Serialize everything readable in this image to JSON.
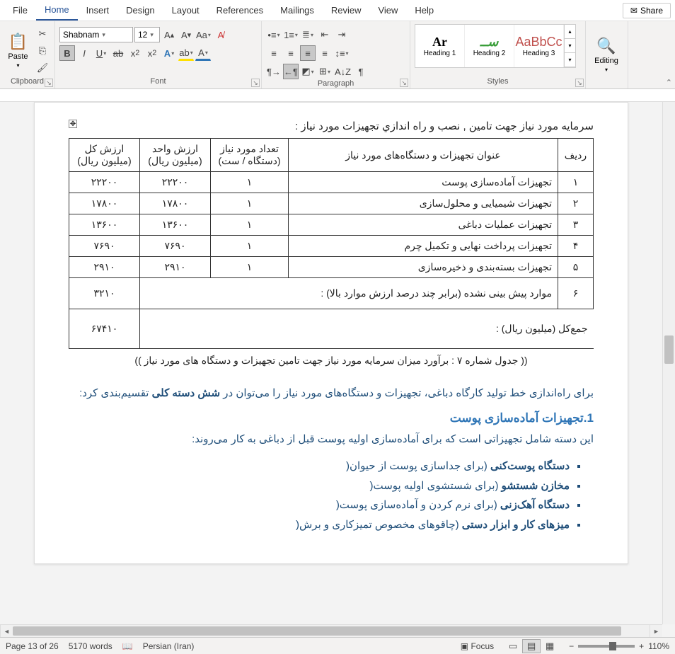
{
  "tabs": [
    "File",
    "Home",
    "Insert",
    "Design",
    "Layout",
    "References",
    "Mailings",
    "Review",
    "View",
    "Help"
  ],
  "active_tab": "Home",
  "share_label": "Share",
  "clipboard": {
    "paste_label": "Paste",
    "group_label": "Clipboard"
  },
  "font": {
    "name": "Shabnam",
    "size": "12",
    "group_label": "Font"
  },
  "paragraph": {
    "group_label": "Paragraph"
  },
  "styles": {
    "group_label": "Styles",
    "items": [
      {
        "preview": "Ar",
        "label": "Heading 1",
        "cls": "h1"
      },
      {
        "preview": "ســ",
        "label": "Heading 2",
        "cls": "h2"
      },
      {
        "preview": "AaBbCc",
        "label": "Heading 3",
        "cls": "h3"
      }
    ]
  },
  "editing": {
    "group_label": "Editing",
    "label": "Editing"
  },
  "doc": {
    "title": "سرمایه مورد نیاز جهت تامین , نصب و راه اندازي تجهیزات مورد نیاز :",
    "headers": [
      "ردیف",
      "عنوان تجهیزات و دستگاه‌های مورد نیاز",
      "تعداد مورد نیاز (دستگاه / ست)",
      "ارزش واحد (میلیون ریال)",
      "ارزش کل (میلیون ریال)"
    ],
    "rows": [
      [
        "۱",
        "تجهیزات آماده‌سازی پوست",
        "۱",
        "۲۲۲۰۰",
        "۲۲۲۰۰"
      ],
      [
        "۲",
        "تجهیزات شیمیایی و محلول‌سازی",
        "۱",
        "۱۷۸۰۰",
        "۱۷۸۰۰"
      ],
      [
        "۳",
        "تجهیزات عملیات دباغی",
        "۱",
        "۱۳۶۰۰",
        "۱۳۶۰۰"
      ],
      [
        "۴",
        "تجهیزات پرداخت نهایی و تکمیل چرم",
        "۱",
        "۷۶۹۰",
        "۷۶۹۰"
      ],
      [
        "۵",
        "تجهیزات بسته‌بندی و ذخیره‌سازی",
        "۱",
        "۲۹۱۰",
        "۲۹۱۰"
      ]
    ],
    "row6_no": "۶",
    "row6_text": "موارد پیش بینی نشده (برابر چند درصد ارزش موارد بالا) :",
    "row6_val": "۳۲۱۰",
    "total_label": "جمع‌کل (میلیون ریال) :",
    "total_val": "۶۷۴۱۰",
    "caption": "(( جدول شماره ۷ : برآورد میزان سرمایه مورد نیاز جهت تامین تجهیزات و دستگاه های مورد نیاز ))",
    "p1_a": "برای راه‌اندازی خط تولید کارگاه دباغی، تجهیزات و دستگاه‌های مورد نیاز را می‌توان در ",
    "p1_b": "شش دسته کلی",
    "p1_c": " تقسیم‌بندی کرد:",
    "sec_no": "1.",
    "sec_t": "تجهیزات آماده‌سازی پوست",
    "p2": "این دسته شامل تجهیزاتی است که برای آماده‌سازی اولیه پوست قبل از دباغی به کار می‌روند:",
    "bullets": [
      {
        "b": "دستگاه پوست‌کنی ",
        "n": "(برای جداسازی پوست از حیوان("
      },
      {
        "b": "مخازن شستشو ",
        "n": "(برای شستشوی اولیه پوست("
      },
      {
        "b": "دستگاه آهک‌زنی ",
        "n": "(برای نرم کردن و آماده‌سازی پوست("
      },
      {
        "b": "میزهای کار و ابزار دستی ",
        "n": "(چاقوهای مخصوص تمیزکاری و برش("
      }
    ]
  },
  "status": {
    "page": "Page 13 of 26",
    "words": "5170 words",
    "lang": "Persian (Iran)",
    "focus": "Focus",
    "zoom": "110%"
  }
}
